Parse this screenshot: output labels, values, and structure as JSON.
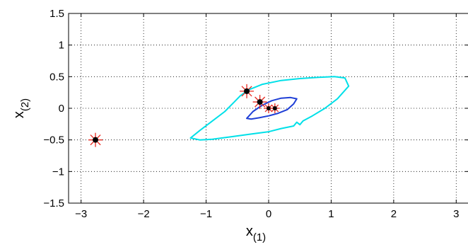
{
  "chart_data": {
    "type": "line",
    "title": "",
    "xlabel": {
      "main": "x",
      "sub": "(1)"
    },
    "ylabel": {
      "main": "x",
      "sub": "(2)"
    },
    "xlim": [
      -3.2,
      3.2
    ],
    "ylim": [
      -1.5,
      1.5
    ],
    "xticks": [
      -3,
      -2,
      -1,
      0,
      1,
      2,
      3
    ],
    "xtick_labels": [
      "−3",
      "−2",
      "−1",
      "0",
      "1",
      "2",
      "3"
    ],
    "yticks": [
      1.5,
      1,
      0.5,
      0,
      -0.5,
      -1,
      -1.5
    ],
    "ytick_labels": [
      "1.5",
      "1",
      "0.5",
      "0",
      "−0.5",
      "−1",
      "−1.5"
    ],
    "grid": true,
    "legend": "none",
    "series": [
      {
        "color": "#00e0e8",
        "style": "closed-curve",
        "x": [
          -1.25,
          -1.1,
          -0.9,
          -0.7,
          -0.55,
          -0.45,
          -0.38,
          -0.3,
          -0.1,
          0.2,
          0.5,
          0.8,
          1.05,
          1.22,
          1.28,
          1.1,
          0.9,
          0.7,
          0.55,
          0.5,
          0.45,
          0.4,
          0.2,
          0.0,
          -0.3,
          -0.6,
          -0.9,
          -1.1,
          -1.25
        ],
        "y": [
          -0.47,
          -0.35,
          -0.2,
          -0.05,
          0.1,
          0.2,
          0.25,
          0.3,
          0.38,
          0.44,
          0.47,
          0.49,
          0.5,
          0.48,
          0.35,
          0.15,
          0.0,
          -0.12,
          -0.2,
          -0.26,
          -0.22,
          -0.28,
          -0.32,
          -0.37,
          -0.41,
          -0.45,
          -0.49,
          -0.5,
          -0.47
        ]
      },
      {
        "color": "#1f3fd6",
        "style": "closed-curve",
        "x": [
          -0.35,
          -0.25,
          -0.1,
          0.05,
          0.2,
          0.35,
          0.45,
          0.4,
          0.3,
          0.15,
          0.0,
          -0.15,
          -0.28,
          -0.35
        ],
        "y": [
          -0.16,
          -0.05,
          0.05,
          0.12,
          0.16,
          0.17,
          0.15,
          0.07,
          -0.02,
          -0.08,
          -0.12,
          -0.15,
          -0.17,
          -0.16
        ]
      }
    ],
    "markers": {
      "fill": "#000000",
      "star_color": "#e8281e",
      "points": [
        {
          "x": -2.77,
          "y": -0.5,
          "size": "large"
        },
        {
          "x": -0.35,
          "y": 0.27,
          "size": "large"
        },
        {
          "x": -0.14,
          "y": 0.1,
          "size": "large"
        },
        {
          "x": 0.0,
          "y": 0.0,
          "size": "small"
        },
        {
          "x": 0.1,
          "y": 0.0,
          "size": "small"
        }
      ]
    }
  }
}
